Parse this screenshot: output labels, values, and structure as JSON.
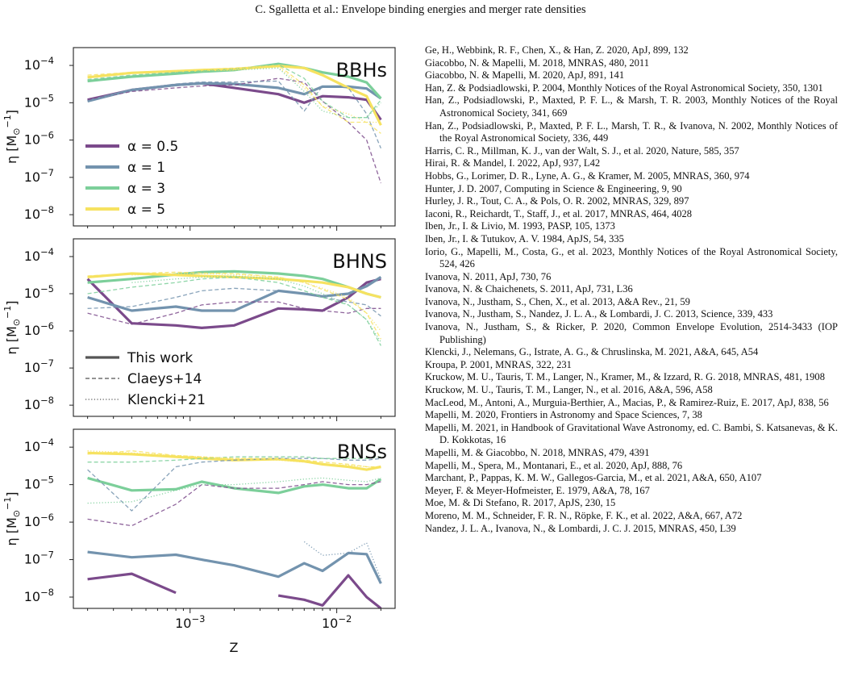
{
  "running_head": "C. Sgalletta et al.: Envelope binding energies and merger rate densities",
  "figure": {
    "xlabel": "Z",
    "ylabel_text": "η [M",
    "ylabel_sub": "⊙",
    "ylabel_sup": "−1",
    "ylabel_close": "]",
    "x_ticks": [
      {
        "value": 0.001,
        "base": "10",
        "exp": "−3"
      },
      {
        "value": 0.01,
        "base": "10",
        "exp": "−2"
      }
    ],
    "y_ticks": [
      {
        "value": 0.0001,
        "base": "10",
        "exp": "−4"
      },
      {
        "value": 1e-05,
        "base": "10",
        "exp": "−5"
      },
      {
        "value": 1e-06,
        "base": "10",
        "exp": "−6"
      },
      {
        "value": 1e-07,
        "base": "10",
        "exp": "−7"
      },
      {
        "value": 1e-08,
        "base": "10",
        "exp": "−8"
      }
    ],
    "alpha_legend": [
      {
        "label": "α = 0.5",
        "color": "#7b4a8b"
      },
      {
        "label": "α = 1",
        "color": "#7393ae"
      },
      {
        "label": "α = 3",
        "color": "#7ccf9a"
      },
      {
        "label": "α = 5",
        "color": "#f6e260"
      }
    ],
    "style_legend": [
      {
        "label": "This work",
        "style": "solid"
      },
      {
        "label": "Claeys+14",
        "style": "dashed"
      },
      {
        "label": "Klencki+21",
        "style": "dotted"
      }
    ]
  },
  "chart_data": [
    {
      "type": "line",
      "title": "BBHs",
      "xlabel": "Z",
      "ylabel": "η [M⊙−1]",
      "xscale": "log",
      "yscale": "log",
      "xlim": [
        0.00016,
        0.025
      ],
      "ylim": [
        5e-09,
        0.0003
      ],
      "x": [
        0.0002,
        0.0004,
        0.0008,
        0.0012,
        0.002,
        0.004,
        0.006,
        0.008,
        0.012,
        0.016,
        0.02
      ],
      "series": [
        {
          "alpha": "0.5",
          "style": "solid",
          "values": [
            1.2e-05,
            2.2e-05,
            3e-05,
            3.3e-05,
            2.5e-05,
            1.7e-05,
            1e-05,
            1.5e-05,
            1.4e-05,
            1.2e-05,
            3.5e-06
          ]
        },
        {
          "alpha": "1",
          "style": "solid",
          "values": [
            1.1e-05,
            2.2e-05,
            3e-05,
            3.3e-05,
            3.2e-05,
            2.5e-05,
            1.7e-05,
            2.7e-05,
            2.7e-05,
            2.4e-05,
            1.3e-05
          ]
        },
        {
          "alpha": "3",
          "style": "solid",
          "values": [
            3.8e-05,
            5e-05,
            6e-05,
            6.8e-05,
            7.5e-05,
            0.00011,
            8.5e-05,
            6.5e-05,
            5e-05,
            3.5e-05,
            1.3e-05
          ]
        },
        {
          "alpha": "5",
          "style": "solid",
          "values": [
            4.8e-05,
            6.3e-05,
            7e-05,
            7.5e-05,
            8e-05,
            9.7e-05,
            8.5e-05,
            5.5e-05,
            2.5e-05,
            1.5e-05,
            2.5e-06
          ]
        },
        {
          "alpha": "0.5",
          "style": "dashed",
          "values": [
            1.2e-05,
            2e-05,
            2.5e-05,
            2.8e-05,
            3e-05,
            4.5e-05,
            3.5e-05,
            1.1e-05,
            3e-06,
            1e-06,
            7e-08
          ]
        },
        {
          "alpha": "1",
          "style": "dashed",
          "values": [
            1.1e-05,
            2.2e-05,
            3.2e-05,
            3.6e-05,
            3.6e-05,
            3.8e-05,
            6e-06,
            2.8e-05,
            2.5e-05,
            5e-06,
            6e-07
          ]
        },
        {
          "alpha": "3",
          "style": "dashed",
          "values": [
            4.2e-05,
            5.5e-05,
            6.5e-05,
            7.2e-05,
            8e-05,
            0.000105,
            4.5e-05,
            1.1e-05,
            4e-06,
            4e-06,
            1.2e-05
          ]
        },
        {
          "alpha": "5",
          "style": "dashed",
          "values": [
            5.5e-05,
            6.5e-05,
            7.2e-05,
            7.8e-05,
            8.5e-05,
            0.0001,
            3e-05,
            8e-06,
            3e-06,
            3e-06,
            1.5e-06
          ]
        },
        {
          "alpha": "3",
          "style": "dotted",
          "values": [
            null,
            null,
            6.5e-05,
            7e-05,
            7.5e-05,
            8.5e-05,
            2e-05,
            6e-06,
            4e-06,
            4e-06,
            1e-05
          ]
        },
        {
          "alpha": "5",
          "style": "dotted",
          "values": [
            null,
            null,
            7e-05,
            7.5e-05,
            8e-05,
            9e-05,
            2.5e-05,
            8e-06,
            5e-06,
            3e-06,
            3e-06
          ]
        }
      ]
    },
    {
      "type": "line",
      "title": "BHNS",
      "xlabel": "Z",
      "ylabel": "η [M⊙−1]",
      "xscale": "log",
      "yscale": "log",
      "xlim": [
        0.00016,
        0.025
      ],
      "ylim": [
        5e-09,
        0.0003
      ],
      "x": [
        0.0002,
        0.0004,
        0.0008,
        0.0012,
        0.002,
        0.004,
        0.006,
        0.008,
        0.012,
        0.016,
        0.02
      ],
      "series": [
        {
          "alpha": "0.5",
          "style": "solid",
          "values": [
            2.5e-05,
            1.6e-06,
            1.4e-06,
            1.2e-06,
            1.4e-06,
            4e-06,
            3.8e-06,
            3.5e-06,
            8e-06,
            2e-05,
            2.5e-05
          ]
        },
        {
          "alpha": "1",
          "style": "solid",
          "values": [
            8e-06,
            3.5e-06,
            4.5e-06,
            3.5e-06,
            3.5e-06,
            1.2e-05,
            1e-05,
            8.5e-06,
            1e-05,
            1.6e-05,
            2.8e-05
          ]
        },
        {
          "alpha": "3",
          "style": "solid",
          "values": [
            2e-05,
            2.5e-05,
            3.3e-05,
            3.8e-05,
            4e-05,
            3.5e-05,
            3e-05,
            2.5e-05,
            1.5e-05,
            1e-05,
            8e-06
          ]
        },
        {
          "alpha": "5",
          "style": "solid",
          "values": [
            2.8e-05,
            3.5e-05,
            3.2e-05,
            3e-05,
            2.8e-05,
            2.5e-05,
            2.2e-05,
            2e-05,
            1.5e-05,
            1e-05,
            8e-06
          ]
        },
        {
          "alpha": "0.5",
          "style": "dashed",
          "values": [
            3e-06,
            1.5e-06,
            3e-06,
            5e-06,
            6e-06,
            6e-06,
            4e-06,
            3.5e-06,
            3e-06,
            4e-06,
            4e-06
          ]
        },
        {
          "alpha": "1",
          "style": "dashed",
          "values": [
            4e-06,
            4.5e-06,
            8e-06,
            1.2e-05,
            1.4e-05,
            1.2e-05,
            1e-05,
            8e-06,
            6e-06,
            5e-06,
            2.5e-06
          ]
        },
        {
          "alpha": "3",
          "style": "dashed",
          "values": [
            1e-05,
            1.5e-05,
            2e-05,
            2.5e-05,
            2.8e-05,
            2e-05,
            1.2e-05,
            8e-06,
            5e-06,
            2e-06,
            4e-07
          ]
        },
        {
          "alpha": "5",
          "style": "dashed",
          "values": [
            3e-05,
            3.5e-05,
            3.8e-05,
            3.6e-05,
            3.5e-05,
            2.8e-05,
            2e-05,
            1.3e-05,
            7e-06,
            3e-06,
            6e-07
          ]
        },
        {
          "alpha": "3",
          "style": "dotted",
          "values": [
            null,
            2e-05,
            2.5e-05,
            2.8e-05,
            3e-05,
            2.5e-05,
            1.6e-05,
            1e-05,
            5e-06,
            2e-06,
            5e-07
          ]
        },
        {
          "alpha": "5",
          "style": "dotted",
          "values": [
            null,
            3.2e-05,
            3.5e-05,
            3.5e-05,
            3.3e-05,
            2.8e-05,
            2e-05,
            1.4e-05,
            8e-06,
            3e-06,
            1e-06
          ]
        }
      ]
    },
    {
      "type": "line",
      "title": "BNSs",
      "xlabel": "Z",
      "ylabel": "η [M⊙−1]",
      "xscale": "log",
      "yscale": "log",
      "xlim": [
        0.00016,
        0.025
      ],
      "ylim": [
        5e-09,
        0.0003
      ],
      "x": [
        0.0002,
        0.0004,
        0.0008,
        0.0012,
        0.002,
        0.004,
        0.006,
        0.008,
        0.012,
        0.016,
        0.02
      ],
      "series": [
        {
          "alpha": "0.5",
          "style": "solid",
          "values": [
            3e-08,
            4.2e-08,
            1.3e-08,
            null,
            null,
            1.1e-08,
            8.5e-09,
            6e-09,
            3.8e-08,
            1e-08,
            5e-09
          ]
        },
        {
          "alpha": "1",
          "style": "solid",
          "values": [
            1.6e-07,
            1.15e-07,
            1.35e-07,
            1e-07,
            7e-08,
            3.5e-08,
            8e-08,
            5e-08,
            1.5e-07,
            1.4e-07,
            2.3e-08
          ]
        },
        {
          "alpha": "3",
          "style": "solid",
          "values": [
            1.5e-05,
            7e-06,
            7.5e-06,
            1.2e-05,
            8e-06,
            6e-06,
            9e-06,
            1e-05,
            8e-06,
            8e-06,
            1.4e-05
          ]
        },
        {
          "alpha": "5",
          "style": "solid",
          "values": [
            7e-05,
            6.5e-05,
            5.5e-05,
            5e-05,
            4.5e-05,
            4.8e-05,
            4.2e-05,
            3.5e-05,
            3e-05,
            2.5e-05,
            3e-05
          ]
        },
        {
          "alpha": "0.5",
          "style": "dashed",
          "values": [
            1.2e-06,
            8e-07,
            3e-06,
            1e-05,
            8e-06,
            8e-06,
            1e-05,
            1.2e-05,
            1e-05,
            1e-05,
            1.2e-05
          ]
        },
        {
          "alpha": "1",
          "style": "dashed",
          "values": [
            2.5e-05,
            2e-06,
            3e-05,
            4e-05,
            4.5e-05,
            5e-05,
            5e-05,
            5e-05,
            4.5e-05,
            4.5e-05,
            5e-05
          ]
        },
        {
          "alpha": "3",
          "style": "dashed",
          "values": [
            4e-05,
            4e-05,
            4.5e-05,
            5e-05,
            5.5e-05,
            5.5e-05,
            5.5e-05,
            5e-05,
            5e-05,
            5e-05,
            5.5e-05
          ]
        },
        {
          "alpha": "5",
          "style": "dashed",
          "values": [
            6.5e-05,
            8e-05,
            6e-05,
            5.5e-05,
            5e-05,
            5e-05,
            4.5e-05,
            4e-05,
            3.5e-05,
            3e-05,
            3e-05
          ]
        },
        {
          "alpha": "1",
          "style": "dotted",
          "values": [
            null,
            null,
            null,
            null,
            null,
            null,
            3e-07,
            1.3e-07,
            1.5e-07,
            2.8e-07,
            3e-08
          ]
        },
        {
          "alpha": "3",
          "style": "dotted",
          "values": [
            3.2e-06,
            3.5e-06,
            7e-06,
            1e-05,
            1e-05,
            1.2e-05,
            1.4e-05,
            1.5e-05,
            1.3e-05,
            1.2e-05,
            1.5e-05
          ]
        },
        {
          "alpha": "5",
          "style": "dotted",
          "values": [
            8e-05,
            7e-05,
            6e-05,
            5.5e-05,
            5e-05,
            4.5e-05,
            4e-05,
            3.5e-05,
            3.3e-05,
            3e-05,
            2.8e-05
          ]
        }
      ]
    }
  ],
  "references": [
    "Ge, H., Webbink, R. F., Chen, X., & Han, Z. 2020, ApJ, 899, 132",
    "Giacobbo, N. & Mapelli, M. 2018, MNRAS, 480, 2011",
    "Giacobbo, N. & Mapelli, M. 2020, ApJ, 891, 141",
    "Han, Z. & Podsiadlowski, P. 2004, Monthly Notices of the Royal Astronomical Society, 350, 1301",
    "Han, Z., Podsiadlowski, P., Maxted, P. F. L., & Marsh, T. R. 2003, Monthly Notices of the Royal Astronomical Society, 341, 669",
    "Han, Z., Podsiadlowski, P., Maxted, P. F. L., Marsh, T. R., & Ivanova, N. 2002, Monthly Notices of the Royal Astronomical Society, 336, 449",
    "Harris, C. R., Millman, K. J., van der Walt, S. J., et al. 2020, Nature, 585, 357",
    "Hirai, R. & Mandel, I. 2022, ApJ, 937, L42",
    "Hobbs, G., Lorimer, D. R., Lyne, A. G., & Kramer, M. 2005, MNRAS, 360, 974",
    "Hunter, J. D. 2007, Computing in Science & Engineering, 9, 90",
    "Hurley, J. R., Tout, C. A., & Pols, O. R. 2002, MNRAS, 329, 897",
    "Iaconi, R., Reichardt, T., Staff, J., et al. 2017, MNRAS, 464, 4028",
    "Iben, Jr., I. & Livio, M. 1993, PASP, 105, 1373",
    "Iben, Jr., I. & Tutukov, A. V. 1984, ApJS, 54, 335",
    "Iorio, G., Mapelli, M., Costa, G., et al. 2023, Monthly Notices of the Royal Astronomical Society, 524, 426",
    "Ivanova, N. 2011, ApJ, 730, 76",
    "Ivanova, N. & Chaichenets, S. 2011, ApJ, 731, L36",
    "Ivanova, N., Justham, S., Chen, X., et al. 2013, A&A Rev., 21, 59",
    "Ivanova, N., Justham, S., Nandez, J. L. A., & Lombardi, J. C. 2013, Science, 339, 433",
    "Ivanova, N., Justham, S., & Ricker, P. 2020, Common Envelope Evolution, 2514-3433 (IOP Publishing)",
    "Klencki, J., Nelemans, G., Istrate, A. G., & Chruslinska, M. 2021, A&A, 645, A54",
    "Kroupa, P. 2001, MNRAS, 322, 231",
    "Kruckow, M. U., Tauris, T. M., Langer, N., Kramer, M., & Izzard, R. G. 2018, MNRAS, 481, 1908",
    "Kruckow, M. U., Tauris, T. M., Langer, N., et al. 2016, A&A, 596, A58",
    "MacLeod, M., Antoni, A., Murguia-Berthier, A., Macias, P., & Ramirez-Ruiz, E. 2017, ApJ, 838, 56",
    "Mapelli, M. 2020, Frontiers in Astronomy and Space Sciences, 7, 38",
    "Mapelli, M. 2021, in Handbook of Gravitational Wave Astronomy, ed. C. Bambi, S. Katsanevas, & K. D. Kokkotas, 16",
    "Mapelli, M. & Giacobbo, N. 2018, MNRAS, 479, 4391",
    "Mapelli, M., Spera, M., Montanari, E., et al. 2020, ApJ, 888, 76",
    "Marchant, P., Pappas, K. M. W., Gallegos-Garcia, M., et al. 2021, A&A, 650, A107",
    "Meyer, F. & Meyer-Hofmeister, E. 1979, A&A, 78, 167",
    "Moe, M. & Di Stefano, R. 2017, ApJS, 230, 15",
    "Moreno, M. M., Schneider, F. R. N., Röpke, F. K., et al. 2022, A&A, 667, A72",
    "Nandez, J. L. A., Ivanova, N., & Lombardi, J. C. J. 2015, MNRAS, 450, L39"
  ]
}
